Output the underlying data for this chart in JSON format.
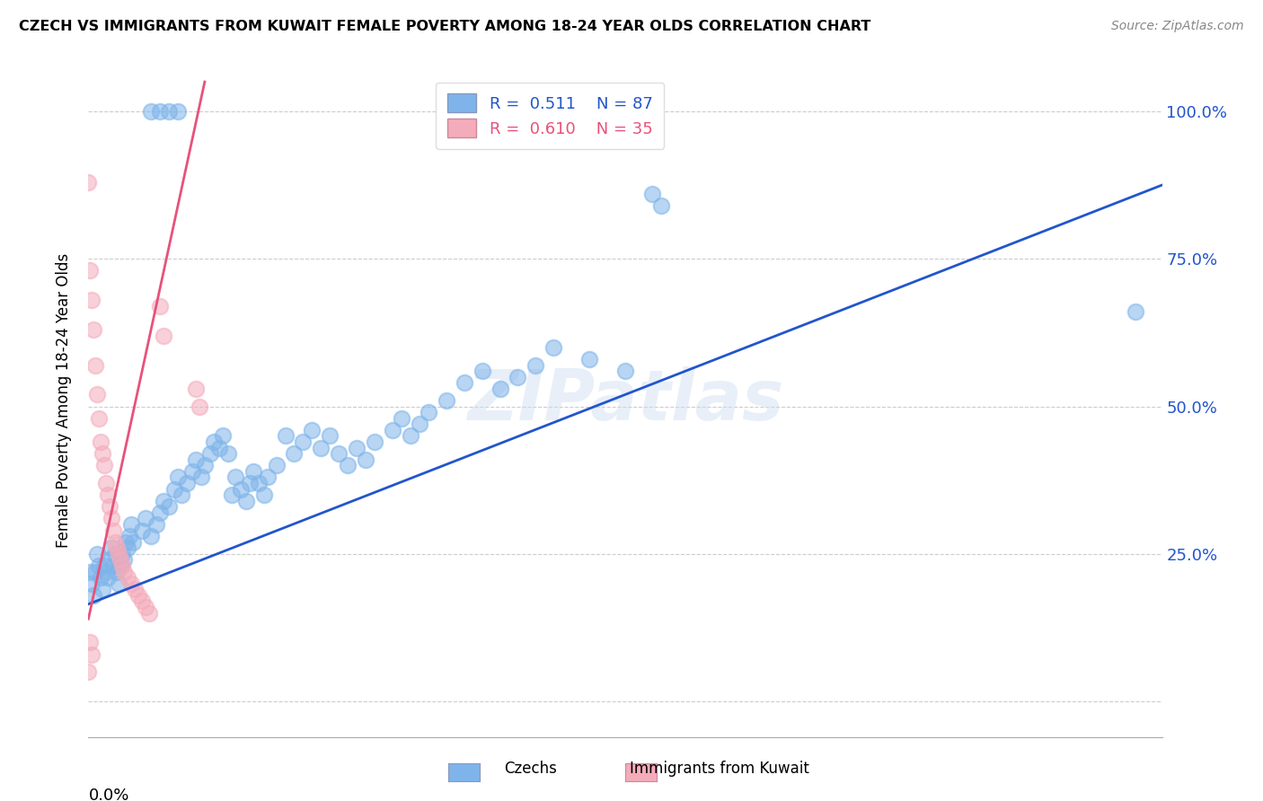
{
  "title": "CZECH VS IMMIGRANTS FROM KUWAIT FEMALE POVERTY AMONG 18-24 YEAR OLDS CORRELATION CHART",
  "source": "Source: ZipAtlas.com",
  "ylabel": "Female Poverty Among 18-24 Year Olds",
  "yticks": [
    0.0,
    0.25,
    0.5,
    0.75,
    1.0
  ],
  "ytick_labels": [
    "",
    "25.0%",
    "50.0%",
    "75.0%",
    "100.0%"
  ],
  "xmin": 0.0,
  "xmax": 0.6,
  "ymin": -0.06,
  "ymax": 1.08,
  "watermark": "ZIPatlas",
  "r_blue": "0.511",
  "n_blue": "87",
  "r_pink": "0.610",
  "n_pink": "35",
  "blue_color": "#7EB4EA",
  "pink_color": "#F4ABBA",
  "blue_line_color": "#2255CC",
  "pink_line_color": "#E8527A",
  "blue_scatter": [
    [
      0.001,
      0.22
    ],
    [
      0.002,
      0.2
    ],
    [
      0.003,
      0.18
    ],
    [
      0.004,
      0.22
    ],
    [
      0.005,
      0.25
    ],
    [
      0.006,
      0.23
    ],
    [
      0.007,
      0.21
    ],
    [
      0.008,
      0.19
    ],
    [
      0.009,
      0.23
    ],
    [
      0.01,
      0.22
    ],
    [
      0.011,
      0.21
    ],
    [
      0.012,
      0.24
    ],
    [
      0.013,
      0.26
    ],
    [
      0.014,
      0.23
    ],
    [
      0.015,
      0.25
    ],
    [
      0.016,
      0.22
    ],
    [
      0.017,
      0.2
    ],
    [
      0.018,
      0.23
    ],
    [
      0.019,
      0.25
    ],
    [
      0.02,
      0.24
    ],
    [
      0.021,
      0.27
    ],
    [
      0.022,
      0.26
    ],
    [
      0.023,
      0.28
    ],
    [
      0.024,
      0.3
    ],
    [
      0.025,
      0.27
    ],
    [
      0.03,
      0.29
    ],
    [
      0.032,
      0.31
    ],
    [
      0.035,
      0.28
    ],
    [
      0.038,
      0.3
    ],
    [
      0.04,
      0.32
    ],
    [
      0.042,
      0.34
    ],
    [
      0.045,
      0.33
    ],
    [
      0.048,
      0.36
    ],
    [
      0.05,
      0.38
    ],
    [
      0.052,
      0.35
    ],
    [
      0.055,
      0.37
    ],
    [
      0.058,
      0.39
    ],
    [
      0.06,
      0.41
    ],
    [
      0.063,
      0.38
    ],
    [
      0.065,
      0.4
    ],
    [
      0.068,
      0.42
    ],
    [
      0.07,
      0.44
    ],
    [
      0.073,
      0.43
    ],
    [
      0.075,
      0.45
    ],
    [
      0.078,
      0.42
    ],
    [
      0.08,
      0.35
    ],
    [
      0.082,
      0.38
    ],
    [
      0.085,
      0.36
    ],
    [
      0.088,
      0.34
    ],
    [
      0.09,
      0.37
    ],
    [
      0.092,
      0.39
    ],
    [
      0.095,
      0.37
    ],
    [
      0.098,
      0.35
    ],
    [
      0.1,
      0.38
    ],
    [
      0.105,
      0.4
    ],
    [
      0.11,
      0.45
    ],
    [
      0.115,
      0.42
    ],
    [
      0.12,
      0.44
    ],
    [
      0.125,
      0.46
    ],
    [
      0.13,
      0.43
    ],
    [
      0.135,
      0.45
    ],
    [
      0.14,
      0.42
    ],
    [
      0.145,
      0.4
    ],
    [
      0.15,
      0.43
    ],
    [
      0.155,
      0.41
    ],
    [
      0.16,
      0.44
    ],
    [
      0.17,
      0.46
    ],
    [
      0.175,
      0.48
    ],
    [
      0.18,
      0.45
    ],
    [
      0.185,
      0.47
    ],
    [
      0.19,
      0.49
    ],
    [
      0.2,
      0.51
    ],
    [
      0.21,
      0.54
    ],
    [
      0.22,
      0.56
    ],
    [
      0.23,
      0.53
    ],
    [
      0.24,
      0.55
    ],
    [
      0.25,
      0.57
    ],
    [
      0.26,
      0.6
    ],
    [
      0.28,
      0.58
    ],
    [
      0.3,
      0.56
    ],
    [
      0.035,
      1.0
    ],
    [
      0.04,
      1.0
    ],
    [
      0.045,
      1.0
    ],
    [
      0.05,
      1.0
    ],
    [
      0.315,
      0.86
    ],
    [
      0.32,
      0.84
    ],
    [
      0.585,
      0.66
    ]
  ],
  "pink_scatter": [
    [
      0.0,
      0.88
    ],
    [
      0.001,
      0.73
    ],
    [
      0.002,
      0.68
    ],
    [
      0.003,
      0.63
    ],
    [
      0.004,
      0.57
    ],
    [
      0.005,
      0.52
    ],
    [
      0.006,
      0.48
    ],
    [
      0.007,
      0.44
    ],
    [
      0.008,
      0.42
    ],
    [
      0.009,
      0.4
    ],
    [
      0.01,
      0.37
    ],
    [
      0.011,
      0.35
    ],
    [
      0.012,
      0.33
    ],
    [
      0.013,
      0.31
    ],
    [
      0.014,
      0.29
    ],
    [
      0.015,
      0.27
    ],
    [
      0.016,
      0.26
    ],
    [
      0.017,
      0.25
    ],
    [
      0.018,
      0.24
    ],
    [
      0.019,
      0.23
    ],
    [
      0.02,
      0.22
    ],
    [
      0.022,
      0.21
    ],
    [
      0.024,
      0.2
    ],
    [
      0.026,
      0.19
    ],
    [
      0.028,
      0.18
    ],
    [
      0.03,
      0.17
    ],
    [
      0.032,
      0.16
    ],
    [
      0.034,
      0.15
    ],
    [
      0.04,
      0.67
    ],
    [
      0.042,
      0.62
    ],
    [
      0.06,
      0.53
    ],
    [
      0.062,
      0.5
    ],
    [
      0.0,
      0.05
    ],
    [
      0.001,
      0.1
    ],
    [
      0.002,
      0.08
    ]
  ],
  "blue_line": [
    [
      0.0,
      0.165
    ],
    [
      0.6,
      0.875
    ]
  ],
  "pink_line": [
    [
      0.0,
      0.14
    ],
    [
      0.065,
      1.05
    ]
  ]
}
